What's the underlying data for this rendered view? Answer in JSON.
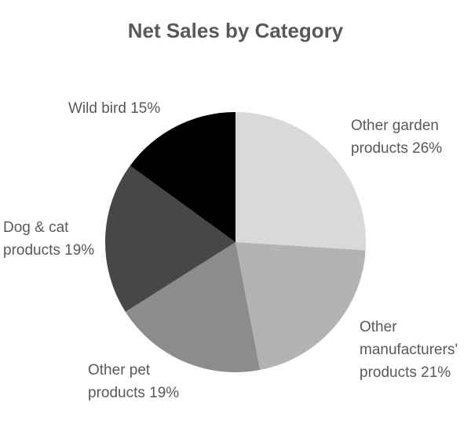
{
  "chart_data": {
    "type": "pie",
    "title": "Net Sales by Category",
    "categories": [
      "Other garden products",
      "Other manufacturers' products",
      "Other pet products",
      "Dog & cat products",
      "Wild bird"
    ],
    "values": [
      26,
      21,
      19,
      19,
      15
    ],
    "value_labels": [
      "26%",
      "21%",
      "19%",
      "19%",
      "15%"
    ],
    "colors": [
      "#d9d9d9",
      "#b3b3b3",
      "#8c8c8c",
      "#474747",
      "#000000"
    ]
  }
}
